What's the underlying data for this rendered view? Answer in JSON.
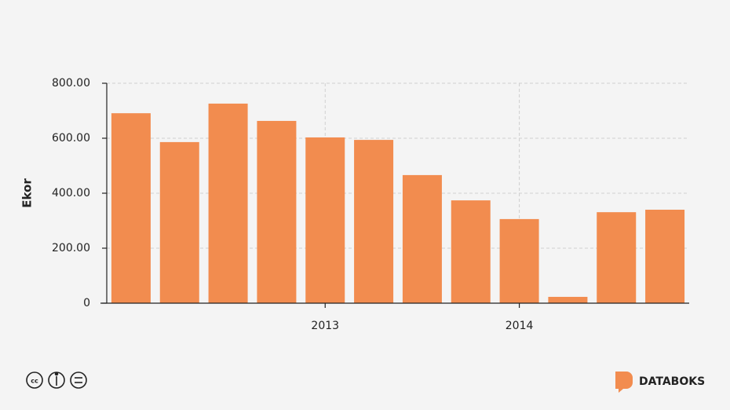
{
  "chart_data": {
    "type": "bar",
    "y_label": "Ekor",
    "categories": [
      null,
      null,
      null,
      null,
      "2013",
      null,
      null,
      null,
      "2014",
      null,
      null,
      null
    ],
    "values": [
      691,
      586,
      726,
      663,
      603,
      594,
      466,
      374,
      306,
      23,
      331,
      340
    ],
    "color": "#f28c4f",
    "ylim": [
      0,
      800
    ],
    "yticks": [
      0,
      {
        "value": 200,
        "label": "200.00"
      },
      {
        "value": 400,
        "label": "400.00"
      },
      {
        "value": 600,
        "label": "600.00"
      },
      {
        "value": 800,
        "label": "800.00"
      }
    ],
    "grid": true
  },
  "footer": {
    "brand": "DATABOKS"
  }
}
